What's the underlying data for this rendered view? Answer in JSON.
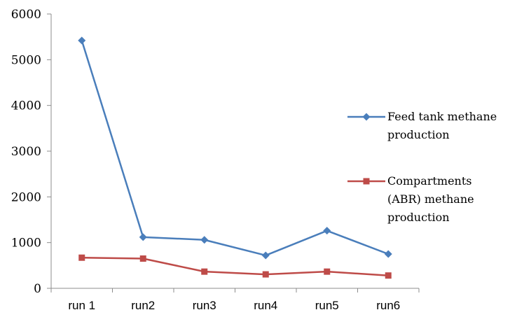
{
  "chart_data": {
    "type": "line",
    "categories": [
      "run 1",
      "run2",
      "run3",
      "run4",
      "run5",
      "run6"
    ],
    "series": [
      {
        "name": "Feed tank methane production",
        "name_lines": [
          "Feed tank methane",
          "production"
        ],
        "color": "#4a7ebb",
        "marker": "diamond",
        "values": [
          5420,
          1120,
          1060,
          720,
          1260,
          750
        ]
      },
      {
        "name": "Compartments (ABR) methane production",
        "name_lines": [
          "Compartments",
          "(ABR) methane",
          "production"
        ],
        "color": "#be4b48",
        "marker": "square",
        "values": [
          670,
          650,
          365,
          305,
          365,
          280
        ]
      }
    ],
    "ylim": [
      0,
      6000
    ],
    "yticks": [
      0,
      1000,
      2000,
      3000,
      4000,
      5000,
      6000
    ],
    "title": "",
    "xlabel": "",
    "ylabel": "",
    "grid": false,
    "legend_position": "right"
  }
}
